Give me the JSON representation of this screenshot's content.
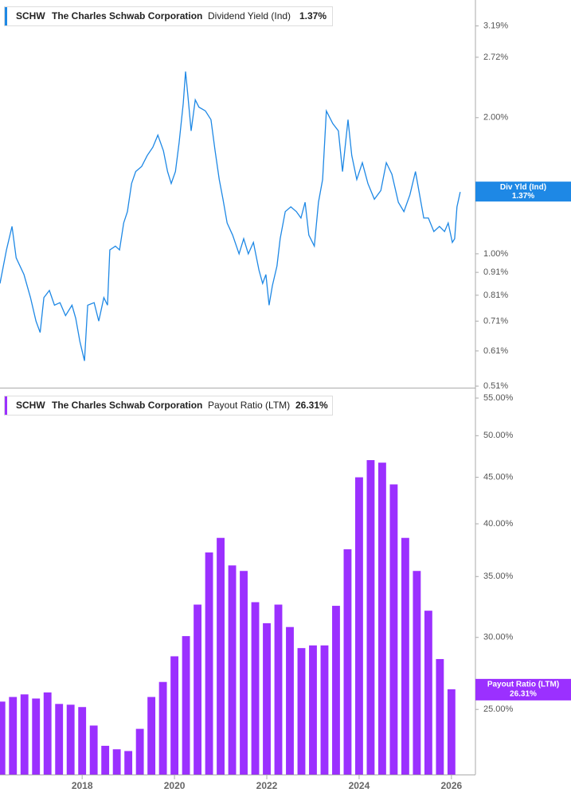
{
  "chart_data": [
    {
      "type": "line",
      "ticker": "SCHW",
      "company": "The Charles Schwab Corporation",
      "title": "Dividend Yield (Ind)",
      "value_label": "1.37%",
      "tag_label": "Div Yld (Ind)",
      "color": "#1e88e5",
      "log_scale": true,
      "x": [
        2016.22,
        2016.36,
        2016.48,
        2016.57,
        2016.74,
        2016.88,
        2017.0,
        2017.09,
        2017.17,
        2017.29,
        2017.4,
        2017.52,
        2017.64,
        2017.78,
        2017.86,
        2017.95,
        2018.05,
        2018.12,
        2018.26,
        2018.36,
        2018.47,
        2018.55,
        2018.6,
        2018.72,
        2018.81,
        2018.9,
        2018.98,
        2019.07,
        2019.16,
        2019.29,
        2019.41,
        2019.53,
        2019.64,
        2019.76,
        2019.85,
        2019.93,
        2020.02,
        2020.1,
        2020.19,
        2020.24,
        2020.29,
        2020.36,
        2020.45,
        2020.53,
        2020.67,
        2020.79,
        2020.88,
        2020.97,
        2021.05,
        2021.14,
        2021.26,
        2021.4,
        2021.5,
        2021.6,
        2021.71,
        2021.83,
        2021.91,
        2021.98,
        2022.05,
        2022.12,
        2022.22,
        2022.29,
        2022.4,
        2022.52,
        2022.64,
        2022.74,
        2022.83,
        2022.91,
        2023.03,
        2023.12,
        2023.21,
        2023.29,
        2023.43,
        2023.55,
        2023.64,
        2023.76,
        2023.84,
        2023.95,
        2024.07,
        2024.19,
        2024.33,
        2024.47,
        2024.59,
        2024.71,
        2024.85,
        2024.97,
        2025.1,
        2025.22,
        2025.31,
        2025.4,
        2025.5,
        2025.62,
        2025.74,
        2025.85,
        2025.93,
        2026.02,
        2026.07,
        2026.12,
        2026.19
      ],
      "values": [
        0.86,
        1.02,
        1.15,
        0.98,
        0.9,
        0.8,
        0.71,
        0.67,
        0.8,
        0.83,
        0.77,
        0.78,
        0.73,
        0.77,
        0.72,
        0.64,
        0.58,
        0.77,
        0.78,
        0.71,
        0.8,
        0.77,
        1.02,
        1.04,
        1.02,
        1.17,
        1.24,
        1.43,
        1.52,
        1.56,
        1.65,
        1.72,
        1.83,
        1.69,
        1.52,
        1.43,
        1.52,
        1.76,
        2.15,
        2.53,
        2.24,
        1.87,
        2.19,
        2.11,
        2.07,
        1.98,
        1.69,
        1.46,
        1.32,
        1.17,
        1.1,
        1.0,
        1.08,
        1.0,
        1.06,
        0.92,
        0.86,
        0.9,
        0.77,
        0.85,
        0.94,
        1.08,
        1.24,
        1.27,
        1.24,
        1.2,
        1.3,
        1.1,
        1.04,
        1.3,
        1.46,
        2.07,
        1.94,
        1.87,
        1.52,
        1.98,
        1.65,
        1.46,
        1.59,
        1.43,
        1.32,
        1.38,
        1.59,
        1.5,
        1.3,
        1.24,
        1.35,
        1.52,
        1.35,
        1.2,
        1.2,
        1.12,
        1.15,
        1.12,
        1.17,
        1.06,
        1.08,
        1.27,
        1.37
      ],
      "xlim": [
        2016.22,
        2026.52
      ],
      "ylim": [
        0.506,
        3.64
      ],
      "yticks": [
        {
          "value": 3.19,
          "label": "3.19%"
        },
        {
          "value": 2.72,
          "label": "2.72%"
        },
        {
          "value": 2.0,
          "label": "2.00%"
        },
        {
          "value": 1.0,
          "label": "1.00%"
        },
        {
          "value": 0.91,
          "label": "0.91%"
        },
        {
          "value": 0.81,
          "label": "0.81%"
        },
        {
          "value": 0.71,
          "label": "0.71%"
        },
        {
          "value": 0.61,
          "label": "0.61%"
        },
        {
          "value": 0.51,
          "label": "0.51%"
        }
      ]
    },
    {
      "type": "bar",
      "ticker": "SCHW",
      "company": "The Charles Schwab Corporation",
      "title": "Payout Ratio (LTM)",
      "value_label": "26.31%",
      "color": "#9b30ff",
      "log_scale": true,
      "x": [
        2016.25,
        2016.5,
        2016.75,
        2017.0,
        2017.25,
        2017.5,
        2017.75,
        2018.0,
        2018.25,
        2018.5,
        2018.75,
        2019.0,
        2019.25,
        2019.5,
        2019.75,
        2020.0,
        2020.25,
        2020.5,
        2020.75,
        2021.0,
        2021.25,
        2021.5,
        2021.75,
        2022.0,
        2022.25,
        2022.5,
        2022.75,
        2023.0,
        2023.25,
        2023.5,
        2023.75,
        2024.0,
        2024.25,
        2024.5,
        2024.75,
        2025.0,
        2025.25,
        2025.5,
        2025.75,
        2026.0
      ],
      "values": [
        25.5,
        25.8,
        25.97,
        25.7,
        26.1,
        25.35,
        25.3,
        25.15,
        24.0,
        22.8,
        22.6,
        22.5,
        23.8,
        25.8,
        26.8,
        28.6,
        30.1,
        32.6,
        37.2,
        38.6,
        36.0,
        35.5,
        32.8,
        31.1,
        32.6,
        30.8,
        29.2,
        29.4,
        29.4,
        32.5,
        37.5,
        45.0,
        47.0,
        46.7,
        44.2,
        38.6,
        35.5,
        32.1,
        28.4,
        26.31
      ],
      "xlim": [
        2016.22,
        2026.52
      ],
      "ylim": [
        21.2,
        55.9
      ],
      "xticks": [
        2018,
        2020,
        2022,
        2024,
        2026
      ],
      "yticks": [
        {
          "value": 55,
          "label": "55.00%"
        },
        {
          "value": 50,
          "label": "50.00%"
        },
        {
          "value": 45,
          "label": "45.00%"
        },
        {
          "value": 40,
          "label": "40.00%"
        },
        {
          "value": 35,
          "label": "35.00%"
        },
        {
          "value": 30,
          "label": "30.00%"
        },
        {
          "value": 25,
          "label": "25.00%"
        }
      ]
    }
  ]
}
